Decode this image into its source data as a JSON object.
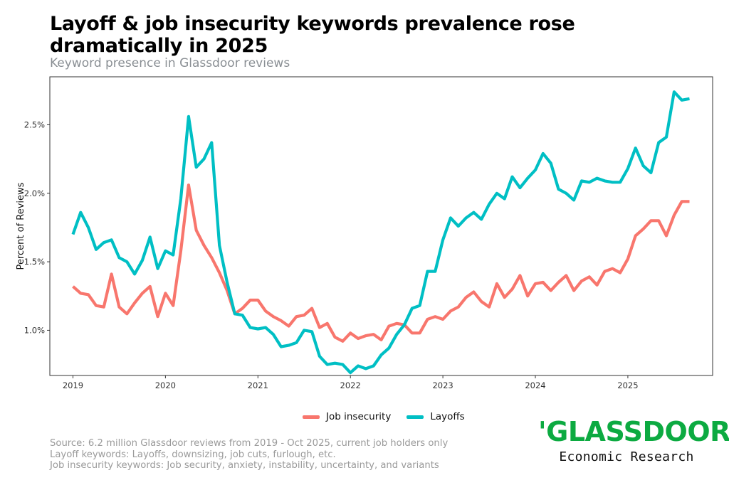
{
  "title": "Layoff & job insecurity keywords prevalence rose dramatically in 2025",
  "subtitle": "Keyword presence in Glassdoor reviews",
  "notes": [
    "Source: 6.2 million Glassdoor reviews from 2019 - Oct 2025, current job holders only",
    "Layoff keywords: Layoffs, downsizing, job cuts, furlough, etc.",
    "Job insecurity keywords: Job security, anxiety, instability, uncertainty, and variants"
  ],
  "brand": {
    "logo": "'GLASSDOOR'",
    "tm": "™",
    "sub": "Economic Research",
    "color": "#0caa41"
  },
  "chart_data": {
    "type": "line",
    "ylabel": "Percent of Reviews",
    "xlabel": "",
    "x_start": "2019-01",
    "x_ticks": [
      "2019",
      "2020",
      "2021",
      "2022",
      "2023",
      "2024",
      "2025"
    ],
    "y_ticks": [
      "1.0%",
      "1.5%",
      "2.0%",
      "2.5%"
    ],
    "y_tick_values": [
      1.0,
      1.5,
      2.0,
      2.5
    ],
    "xlim": [
      "2018-10",
      "2025-12"
    ],
    "ylim": [
      0.67,
      2.85
    ],
    "legend_position": "bottom",
    "series": [
      {
        "name": "Job insecurity",
        "color": "#f8766d",
        "values": [
          1.32,
          1.27,
          1.26,
          1.18,
          1.17,
          1.41,
          1.17,
          1.12,
          1.2,
          1.27,
          1.32,
          1.1,
          1.27,
          1.18,
          1.58,
          2.06,
          1.73,
          1.62,
          1.53,
          1.42,
          1.29,
          1.12,
          1.16,
          1.22,
          1.22,
          1.14,
          1.1,
          1.07,
          1.03,
          1.1,
          1.11,
          1.16,
          1.02,
          1.05,
          0.95,
          0.92,
          0.98,
          0.94,
          0.96,
          0.97,
          0.93,
          1.03,
          1.05,
          1.04,
          0.98,
          0.98,
          1.08,
          1.1,
          1.08,
          1.14,
          1.17,
          1.24,
          1.28,
          1.21,
          1.17,
          1.34,
          1.24,
          1.3,
          1.4,
          1.25,
          1.34,
          1.35,
          1.29,
          1.35,
          1.4,
          1.29,
          1.36,
          1.39,
          1.33,
          1.43,
          1.45,
          1.42,
          1.52,
          1.69,
          1.74,
          1.8,
          1.8,
          1.69,
          1.84,
          1.94,
          1.94
        ]
      },
      {
        "name": "Layoffs",
        "color": "#00bfc4",
        "values": [
          1.7,
          1.86,
          1.75,
          1.59,
          1.64,
          1.66,
          1.53,
          1.5,
          1.41,
          1.51,
          1.68,
          1.45,
          1.58,
          1.55,
          1.96,
          2.56,
          2.19,
          2.25,
          2.37,
          1.62,
          1.35,
          1.12,
          1.11,
          1.02,
          1.01,
          1.02,
          0.97,
          0.88,
          0.89,
          0.91,
          1.0,
          0.99,
          0.81,
          0.75,
          0.76,
          0.75,
          0.69,
          0.74,
          0.72,
          0.74,
          0.82,
          0.87,
          0.97,
          1.04,
          1.16,
          1.18,
          1.43,
          1.43,
          1.66,
          1.82,
          1.76,
          1.82,
          1.86,
          1.81,
          1.92,
          2.0,
          1.96,
          2.12,
          2.04,
          2.11,
          2.17,
          2.29,
          2.22,
          2.03,
          2.0,
          1.95,
          2.09,
          2.08,
          2.11,
          2.09,
          2.08,
          2.08,
          2.18,
          2.33,
          2.2,
          2.15,
          2.37,
          2.41,
          2.74,
          2.68,
          2.69
        ]
      }
    ]
  }
}
